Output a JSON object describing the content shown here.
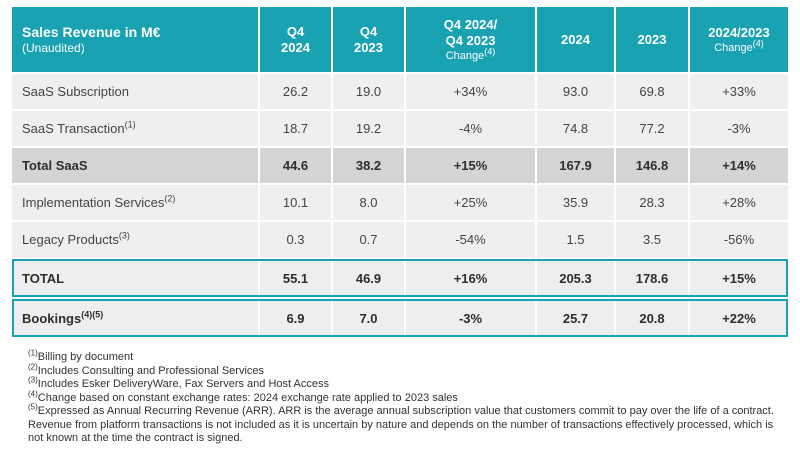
{
  "brand": {
    "teal": "#18a2b2",
    "row_bg": "#efefef",
    "subtotal_bg": "#d4d4d4",
    "text": "#444444"
  },
  "table": {
    "header": {
      "title": "Sales Revenue in M€",
      "subtitle": "(Unaudited)",
      "columns": [
        {
          "line1": "Q4",
          "line2": "2024"
        },
        {
          "line1": "Q4",
          "line2": "2023"
        },
        {
          "line1": "Q4 2024/",
          "line2": "Q4 2023",
          "change": "Change",
          "change_sup": "(4)"
        },
        {
          "line1": "2024"
        },
        {
          "line1": "2023"
        },
        {
          "line1": "2024/2023",
          "change": "Change",
          "change_sup": "(4)"
        }
      ]
    },
    "rows": [
      {
        "label": "SaaS Subscription",
        "sup": "",
        "style": "normal",
        "values": [
          "26.2",
          "19.0",
          "+34%",
          "93.0",
          "69.8",
          "+33%"
        ]
      },
      {
        "label": "SaaS Transaction",
        "sup": "(1)",
        "style": "normal",
        "values": [
          "18.7",
          "19.2",
          "-4%",
          "74.8",
          "77.2",
          "-3%"
        ]
      },
      {
        "label": "Total SaaS",
        "sup": "",
        "style": "subtotal",
        "values": [
          "44.6",
          "38.2",
          "+15%",
          "167.9",
          "146.8",
          "+14%"
        ]
      },
      {
        "label": "Implementation Services",
        "sup": "(2)",
        "style": "normal",
        "values": [
          "10.1",
          "8.0",
          "+25%",
          "35.9",
          "28.3",
          "+28%"
        ]
      },
      {
        "label": "Legacy Products",
        "sup": "(3)",
        "style": "normal",
        "values": [
          "0.3",
          "0.7",
          "-54%",
          "1.5",
          "3.5",
          "-56%"
        ]
      },
      {
        "label": "TOTAL",
        "sup": "",
        "style": "total-boxed",
        "values": [
          "55.1",
          "46.9",
          "+16%",
          "205.3",
          "178.6",
          "+15%"
        ]
      },
      {
        "label": "Bookings",
        "sup": "(4)(5)",
        "style": "total-boxed",
        "values": [
          "6.9",
          "7.0",
          "-3%",
          "25.7",
          "20.8",
          "+22%"
        ]
      }
    ]
  },
  "footnotes": [
    {
      "sup": "(1)",
      "text": "Billing by document"
    },
    {
      "sup": "(2)",
      "text": "Includes Consulting and Professional Services"
    },
    {
      "sup": "(3)",
      "text": "Includes Esker DeliveryWare, Fax Servers and Host Access"
    },
    {
      "sup": "(4)",
      "text": "Change based on constant exchange rates: 2024 exchange rate applied to 2023 sales"
    },
    {
      "sup": "(5)",
      "text": "Expressed as Annual Recurring Revenue (ARR). ARR is the average annual subscription value that customers commit to pay over the life of a contract. Revenue from platform transactions is not included as it is uncertain by nature and depends on the number of transactions effectively processed, which is not known at the time the contract is signed."
    }
  ]
}
